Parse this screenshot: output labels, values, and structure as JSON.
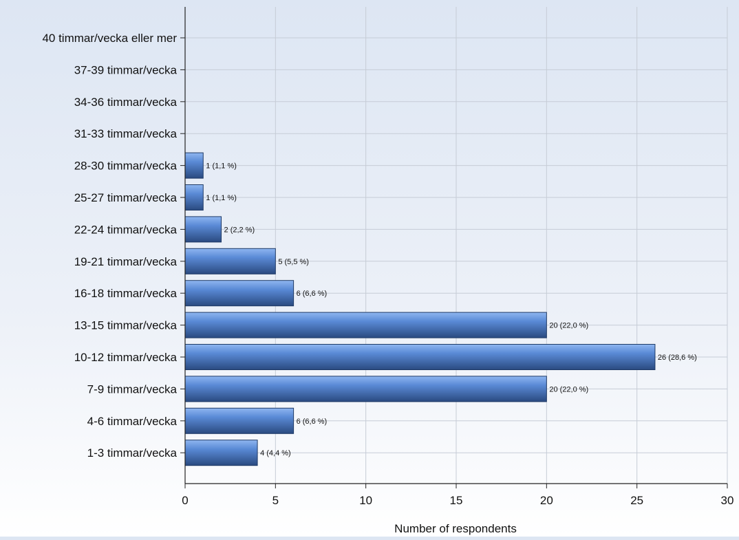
{
  "chart_data": {
    "type": "bar",
    "orientation": "horizontal",
    "categories": [
      "40 timmar/vecka eller mer",
      "37-39 timmar/vecka",
      "34-36 timmar/vecka",
      "31-33 timmar/vecka",
      "28-30 timmar/vecka",
      "25-27 timmar/vecka",
      "22-24 timmar/vecka",
      "19-21 timmar/vecka",
      "16-18 timmar/vecka",
      "13-15 timmar/vecka",
      "10-12 timmar/vecka",
      "7-9 timmar/vecka",
      "4-6 timmar/vecka",
      "1-3 timmar/vecka"
    ],
    "values": [
      0,
      0,
      0,
      0,
      1,
      1,
      2,
      5,
      6,
      20,
      26,
      20,
      6,
      4
    ],
    "data_labels": [
      "",
      "",
      "",
      "",
      "1 (1,1 %)",
      "1 (1,1 %)",
      "2 (2,2 %)",
      "5 (5,5 %)",
      "6 (6,6 %)",
      "20 (22,0 %)",
      "26 (28,6 %)",
      "20 (22,0 %)",
      "6 (6,6 %)",
      "4 (4,4 %)"
    ],
    "x_ticks": [
      "0",
      "5",
      "10",
      "15",
      "20",
      "25",
      "30"
    ],
    "xlim": [
      0,
      30
    ],
    "xlabel": "Number of respondents",
    "ylabel": "",
    "title": "",
    "grid": true,
    "colors": {
      "bar_light": "#8fb6f0",
      "bar_mid": "#5a8ad6",
      "bar_dark": "#2a4a80",
      "grid": "#c6ccd6",
      "axis": "#222222"
    }
  }
}
